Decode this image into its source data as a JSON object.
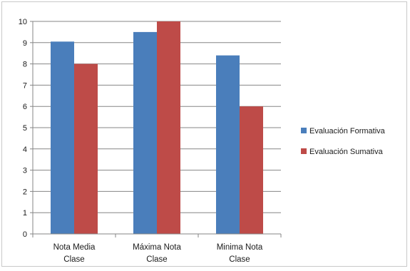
{
  "chart_data": {
    "type": "bar",
    "categories": [
      [
        "Nota Media",
        "Clase"
      ],
      [
        "Máxima Nota",
        "Clase"
      ],
      [
        "Minima Nota",
        "Clase"
      ]
    ],
    "series": [
      {
        "name": "Evaluación Formativa",
        "values": [
          9.05,
          9.5,
          8.4
        ],
        "color": "#4a7ebb"
      },
      {
        "name": "Evaluación Sumativa",
        "values": [
          8.0,
          10.0,
          6.0
        ],
        "color": "#be4b48"
      }
    ],
    "ylim": [
      0,
      10
    ],
    "yticks": [
      0,
      1,
      2,
      3,
      4,
      5,
      6,
      7,
      8,
      9,
      10
    ],
    "grid": true,
    "legend": "right"
  }
}
